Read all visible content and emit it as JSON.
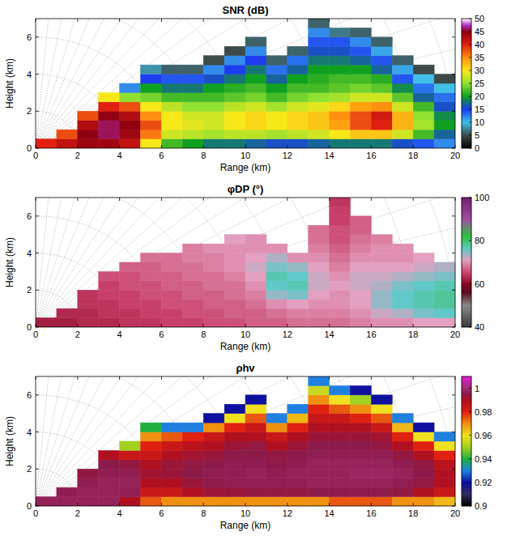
{
  "chart_data": [
    {
      "type": "heatmap",
      "title": "SNR (dB)",
      "xlabel": "Range (km)",
      "ylabel": "Height (km)",
      "xlim": [
        0,
        20
      ],
      "ylim": [
        0,
        7
      ],
      "xticks": [
        0,
        2,
        4,
        6,
        8,
        10,
        12,
        14,
        16,
        18,
        20
      ],
      "yticks": [
        0,
        2,
        4,
        6
      ],
      "x": [
        0.5,
        1.5,
        2.5,
        3.5,
        4.5,
        5.5,
        6.5,
        7.5,
        8.5,
        9.5,
        10.5,
        11.5,
        12.5,
        13.5,
        14.5,
        15.5,
        16.5,
        17.5,
        18.5,
        19.5
      ],
      "y": [
        0.25,
        0.75,
        1.25,
        1.75,
        2.25,
        2.75,
        3.25,
        3.75,
        4.25,
        4.75,
        5.25,
        5.75,
        6.25,
        6.75
      ],
      "cells": [
        [
          40,
          42,
          44,
          44,
          42,
          30,
          22,
          20,
          18,
          18,
          17,
          16,
          16,
          17,
          18,
          18,
          18,
          16,
          14,
          12
        ],
        [
          null,
          38,
          45,
          46,
          44,
          36,
          28,
          27,
          26,
          27,
          27,
          26,
          27,
          28,
          30,
          32,
          32,
          28,
          22,
          17
        ],
        [
          null,
          null,
          43,
          46,
          45,
          38,
          30,
          29,
          28,
          30,
          31,
          30,
          31,
          32,
          34,
          38,
          40,
          33,
          26,
          20
        ],
        [
          null,
          null,
          38,
          45,
          43,
          35,
          30,
          28,
          28,
          30,
          31,
          30,
          31,
          32,
          35,
          38,
          41,
          33,
          25,
          19
        ],
        [
          null,
          null,
          null,
          40,
          38,
          30,
          27,
          25,
          25,
          27,
          28,
          26,
          28,
          29,
          31,
          34,
          35,
          28,
          22,
          16
        ],
        [
          null,
          null,
          null,
          30,
          25,
          24,
          22,
          22,
          22,
          23,
          24,
          22,
          24,
          25,
          26,
          28,
          28,
          23,
          17,
          13
        ],
        [
          null,
          null,
          null,
          null,
          12,
          20,
          18,
          18,
          20,
          21,
          22,
          20,
          22,
          22,
          23,
          24,
          23,
          19,
          13,
          10
        ],
        [
          null,
          null,
          null,
          null,
          null,
          15,
          14,
          14,
          16,
          18,
          20,
          17,
          20,
          21,
          22,
          22,
          21,
          14,
          10,
          5
        ],
        [
          null,
          null,
          null,
          null,
          null,
          8,
          6,
          6,
          12,
          15,
          18,
          13,
          17,
          20,
          20,
          20,
          17,
          11,
          5,
          null
        ],
        [
          null,
          null,
          null,
          null,
          null,
          null,
          null,
          null,
          5,
          12,
          15,
          6,
          13,
          18,
          18,
          17,
          14,
          6,
          null,
          null
        ],
        [
          null,
          null,
          null,
          null,
          null,
          null,
          null,
          null,
          null,
          5,
          12,
          null,
          6,
          16,
          16,
          14,
          11,
          null,
          null,
          null
        ],
        [
          null,
          null,
          null,
          null,
          null,
          null,
          null,
          null,
          null,
          null,
          6,
          null,
          null,
          14,
          14,
          12,
          6,
          null,
          null,
          null
        ],
        [
          null,
          null,
          null,
          null,
          null,
          null,
          null,
          null,
          null,
          null,
          null,
          null,
          null,
          12,
          7,
          6,
          null,
          null,
          null,
          null
        ],
        [
          null,
          null,
          null,
          null,
          null,
          null,
          null,
          null,
          null,
          null,
          null,
          null,
          null,
          6,
          null,
          null,
          null,
          null,
          null,
          null
        ]
      ],
      "colorbar": {
        "range": [
          0,
          50
        ],
        "ticks": [
          0,
          5,
          10,
          15,
          20,
          25,
          30,
          35,
          40,
          45,
          50
        ],
        "stops": [
          [
            0,
            "#000000"
          ],
          [
            5,
            "#3c4a4a"
          ],
          [
            10,
            "#40c0e8"
          ],
          [
            15,
            "#1c3cf0"
          ],
          [
            20,
            "#10a020"
          ],
          [
            25,
            "#90e030"
          ],
          [
            30,
            "#f8e818"
          ],
          [
            35,
            "#ff9010"
          ],
          [
            40,
            "#e02010"
          ],
          [
            45,
            "#900010"
          ],
          [
            47.5,
            "#b030c8"
          ],
          [
            50,
            "#ffffff"
          ]
        ]
      }
    },
    {
      "type": "heatmap",
      "title": "φDP (°)",
      "xlabel": "Range (km)",
      "ylabel": "Height (km)",
      "xlim": [
        0,
        20
      ],
      "ylim": [
        0,
        7
      ],
      "xticks": [
        0,
        2,
        4,
        6,
        8,
        10,
        12,
        14,
        16,
        18,
        20
      ],
      "yticks": [
        0,
        2,
        4,
        6
      ],
      "x": [
        0.5,
        1.5,
        2.5,
        3.5,
        4.5,
        5.5,
        6.5,
        7.5,
        8.5,
        9.5,
        10.5,
        11.5,
        12.5,
        13.5,
        14.5,
        15.5,
        16.5,
        17.5,
        18.5,
        19.5
      ],
      "y": [
        0.25,
        0.75,
        1.25,
        1.75,
        2.25,
        2.75,
        3.25,
        3.75,
        4.25,
        4.75,
        5.25,
        5.75,
        6.25,
        6.75
      ],
      "cells": [
        [
          62,
          62,
          63,
          63,
          64,
          64,
          65,
          65,
          66,
          66,
          67,
          67,
          68,
          68,
          68,
          69,
          70,
          70,
          71,
          71
        ],
        [
          null,
          63,
          63,
          64,
          64,
          65,
          65,
          66,
          66,
          67,
          67,
          68,
          69,
          69,
          69,
          70,
          72,
          73,
          75,
          76
        ],
        [
          null,
          null,
          64,
          64,
          65,
          65,
          66,
          66,
          67,
          67,
          68,
          70,
          71,
          70,
          70,
          71,
          74,
          76,
          77,
          78
        ],
        [
          null,
          null,
          64,
          65,
          65,
          66,
          66,
          67,
          67,
          68,
          69,
          74,
          75,
          71,
          70,
          71,
          74,
          76,
          77,
          78
        ],
        [
          null,
          null,
          null,
          65,
          66,
          66,
          67,
          67,
          68,
          68,
          70,
          76,
          77,
          72,
          71,
          72,
          73,
          75,
          76,
          77
        ],
        [
          null,
          null,
          null,
          66,
          66,
          67,
          67,
          68,
          68,
          69,
          71,
          77,
          76,
          72,
          70,
          72,
          72,
          73,
          74,
          75
        ],
        [
          null,
          null,
          null,
          null,
          67,
          67,
          68,
          68,
          69,
          70,
          72,
          75,
          74,
          71,
          69,
          71,
          71,
          71,
          72,
          73
        ],
        [
          null,
          null,
          null,
          null,
          null,
          68,
          68,
          69,
          69,
          70,
          71,
          73,
          70,
          70,
          68,
          70,
          70,
          70,
          71,
          null
        ],
        [
          null,
          null,
          null,
          null,
          null,
          null,
          null,
          69,
          70,
          70,
          70,
          70,
          null,
          69,
          67,
          69,
          70,
          70,
          null,
          null
        ],
        [
          null,
          null,
          null,
          null,
          null,
          null,
          null,
          null,
          null,
          71,
          70,
          null,
          null,
          68,
          66,
          68,
          69,
          null,
          null,
          null
        ],
        [
          null,
          null,
          null,
          null,
          null,
          null,
          null,
          null,
          null,
          null,
          null,
          null,
          null,
          68,
          66,
          67,
          null,
          null,
          null,
          null
        ],
        [
          null,
          null,
          null,
          null,
          null,
          null,
          null,
          null,
          null,
          null,
          null,
          null,
          null,
          null,
          65,
          67,
          null,
          null,
          null,
          null
        ],
        [
          null,
          null,
          null,
          null,
          null,
          null,
          null,
          null,
          null,
          null,
          null,
          null,
          null,
          null,
          65,
          null,
          null,
          null,
          null,
          null
        ],
        [
          null,
          null,
          null,
          null,
          null,
          null,
          null,
          null,
          null,
          null,
          null,
          null,
          null,
          null,
          64,
          null,
          null,
          null,
          null,
          null
        ]
      ],
      "colorbar": {
        "range": [
          40,
          100
        ],
        "ticks": [
          40,
          60,
          80,
          100
        ],
        "stops": [
          [
            40,
            "#3a3a3a"
          ],
          [
            50,
            "#8a8a8a"
          ],
          [
            56,
            "#5a1020"
          ],
          [
            60,
            "#8b0a28"
          ],
          [
            65,
            "#c8406a"
          ],
          [
            71,
            "#e4a0c0"
          ],
          [
            76,
            "#60c8c8"
          ],
          [
            82,
            "#30c040"
          ],
          [
            90,
            "#a050a0"
          ],
          [
            100,
            "#702070"
          ]
        ]
      }
    },
    {
      "type": "heatmap",
      "title": "ρhv",
      "xlabel": "Range (km)",
      "ylabel": "Height (km)",
      "xlim": [
        0,
        20
      ],
      "ylim": [
        0,
        7
      ],
      "xticks": [
        0,
        2,
        4,
        6,
        8,
        10,
        12,
        14,
        16,
        18,
        20
      ],
      "yticks": [
        0,
        2,
        4,
        6
      ],
      "x": [
        0.5,
        1.5,
        2.5,
        3.5,
        4.5,
        5.5,
        6.5,
        7.5,
        8.5,
        9.5,
        10.5,
        11.5,
        12.5,
        13.5,
        14.5,
        15.5,
        16.5,
        17.5,
        18.5,
        19.5
      ],
      "y": [
        0.25,
        0.75,
        1.25,
        1.75,
        2.25,
        2.75,
        3.25,
        3.75,
        4.25,
        4.75,
        5.25,
        5.75,
        6.25,
        6.75
      ],
      "cells": [
        [
          0.997,
          0.997,
          0.997,
          0.997,
          0.99,
          0.975,
          0.97,
          0.97,
          0.97,
          0.97,
          0.97,
          0.97,
          0.97,
          0.97,
          0.975,
          0.975,
          0.975,
          0.97,
          0.97,
          0.965
        ],
        [
          null,
          0.996,
          0.997,
          0.997,
          0.996,
          0.985,
          0.985,
          0.99,
          0.993,
          0.993,
          0.994,
          0.994,
          0.994,
          0.995,
          0.995,
          0.995,
          0.995,
          0.994,
          0.99,
          0.985
        ],
        [
          null,
          null,
          0.996,
          0.997,
          0.997,
          0.99,
          0.99,
          0.993,
          0.995,
          0.996,
          0.996,
          0.996,
          0.996,
          0.997,
          0.997,
          0.997,
          0.997,
          0.996,
          0.994,
          0.99
        ],
        [
          null,
          null,
          0.994,
          0.996,
          0.996,
          0.992,
          0.993,
          0.995,
          0.996,
          0.996,
          0.997,
          0.996,
          0.997,
          0.997,
          0.997,
          0.998,
          0.998,
          0.997,
          0.995,
          0.99
        ],
        [
          null,
          null,
          null,
          0.995,
          0.994,
          0.99,
          0.993,
          0.994,
          0.995,
          0.996,
          0.996,
          0.995,
          0.996,
          0.997,
          0.997,
          0.997,
          0.997,
          0.996,
          0.994,
          0.988
        ],
        [
          null,
          null,
          null,
          0.99,
          0.985,
          0.985,
          0.99,
          0.992,
          0.993,
          0.995,
          0.995,
          0.994,
          0.995,
          0.996,
          0.996,
          0.996,
          0.996,
          0.994,
          0.99,
          0.98
        ],
        [
          null,
          null,
          null,
          null,
          0.95,
          0.98,
          0.985,
          0.988,
          0.99,
          0.993,
          0.994,
          0.99,
          0.993,
          0.995,
          0.995,
          0.995,
          0.994,
          0.99,
          0.98,
          0.96
        ],
        [
          null,
          null,
          null,
          null,
          null,
          0.97,
          0.975,
          0.98,
          0.985,
          0.99,
          0.99,
          0.985,
          0.99,
          0.993,
          0.993,
          0.993,
          0.992,
          0.98,
          0.96,
          0.93
        ],
        [
          null,
          null,
          null,
          null,
          null,
          0.94,
          0.93,
          0.93,
          0.97,
          0.98,
          0.985,
          0.97,
          0.98,
          0.99,
          0.99,
          0.99,
          0.985,
          0.965,
          0.92,
          null
        ],
        [
          null,
          null,
          null,
          null,
          null,
          null,
          null,
          null,
          0.92,
          0.96,
          0.975,
          0.93,
          0.965,
          0.985,
          0.985,
          0.98,
          0.975,
          0.93,
          null,
          null
        ],
        [
          null,
          null,
          null,
          null,
          null,
          null,
          null,
          null,
          null,
          0.92,
          0.96,
          null,
          0.93,
          0.98,
          0.975,
          0.97,
          0.96,
          null,
          null,
          null
        ],
        [
          null,
          null,
          null,
          null,
          null,
          null,
          null,
          null,
          null,
          null,
          0.92,
          null,
          null,
          0.97,
          0.96,
          0.95,
          0.92,
          null,
          null,
          null
        ],
        [
          null,
          null,
          null,
          null,
          null,
          null,
          null,
          null,
          null,
          null,
          null,
          null,
          null,
          0.955,
          0.93,
          0.92,
          null,
          null,
          null,
          null
        ],
        [
          null,
          null,
          null,
          null,
          null,
          null,
          null,
          null,
          null,
          null,
          null,
          null,
          null,
          0.93,
          null,
          null,
          null,
          null,
          null,
          null
        ]
      ],
      "colorbar": {
        "range": [
          0.9,
          1.01
        ],
        "ticks": [
          0.9,
          0.92,
          0.94,
          0.96,
          0.98,
          1
        ],
        "stops": [
          [
            0.9,
            "#000000"
          ],
          [
            0.91,
            "#303060"
          ],
          [
            0.92,
            "#1010a0"
          ],
          [
            0.93,
            "#2080e0"
          ],
          [
            0.94,
            "#20b040"
          ],
          [
            0.95,
            "#a0d020"
          ],
          [
            0.96,
            "#f0e020"
          ],
          [
            0.97,
            "#f09010"
          ],
          [
            0.98,
            "#e02010"
          ],
          [
            0.99,
            "#b01020"
          ],
          [
            0.995,
            "#8c1a4a"
          ],
          [
            1.0,
            "#a03070"
          ],
          [
            1.01,
            "#e020e0"
          ]
        ]
      }
    }
  ]
}
